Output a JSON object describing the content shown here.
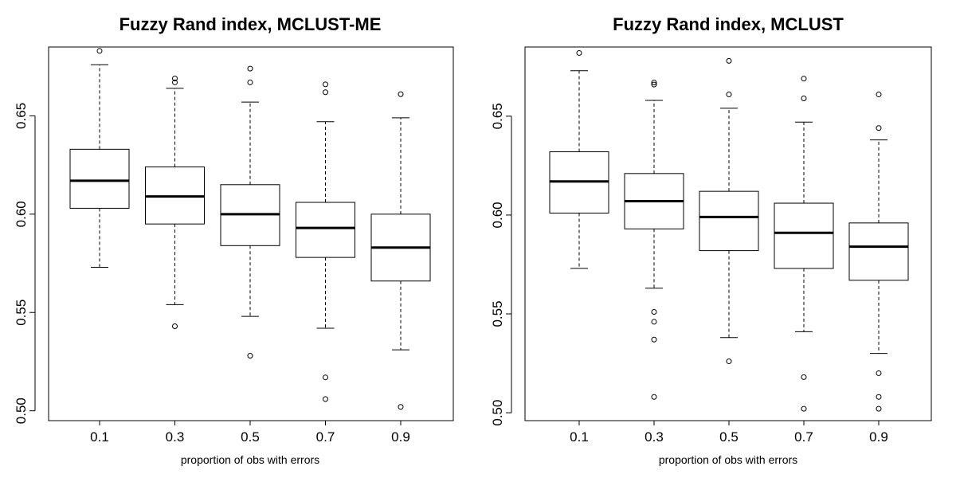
{
  "chart_data": [
    {
      "type": "box",
      "title": "Fuzzy Rand index, MCLUST-ME",
      "xlabel": "proportion of obs with errors",
      "ylabel": "",
      "categories": [
        "0.1",
        "0.3",
        "0.5",
        "0.7",
        "0.9"
      ],
      "ylim": [
        0.495,
        0.685
      ],
      "yticks": [
        0.5,
        0.55,
        0.6,
        0.65
      ],
      "ytick_labels": [
        "0.50",
        "0.55",
        "0.60",
        "0.65"
      ],
      "boxes": [
        {
          "category": "0.1",
          "whisker_low": 0.573,
          "q1": 0.603,
          "median": 0.617,
          "q3": 0.633,
          "whisker_high": 0.676,
          "outliers": [
            0.683
          ]
        },
        {
          "category": "0.3",
          "whisker_low": 0.554,
          "q1": 0.595,
          "median": 0.609,
          "q3": 0.624,
          "whisker_high": 0.664,
          "outliers": [
            0.669,
            0.667,
            0.543
          ]
        },
        {
          "category": "0.5",
          "whisker_low": 0.548,
          "q1": 0.584,
          "median": 0.6,
          "q3": 0.615,
          "whisker_high": 0.657,
          "outliers": [
            0.674,
            0.667,
            0.528
          ]
        },
        {
          "category": "0.7",
          "whisker_low": 0.542,
          "q1": 0.578,
          "median": 0.593,
          "q3": 0.606,
          "whisker_high": 0.647,
          "outliers": [
            0.666,
            0.662,
            0.517,
            0.506
          ]
        },
        {
          "category": "0.9",
          "whisker_low": 0.531,
          "q1": 0.566,
          "median": 0.583,
          "q3": 0.6,
          "whisker_high": 0.649,
          "outliers": [
            0.661,
            0.502
          ]
        }
      ],
      "grid": false
    },
    {
      "type": "box",
      "title": "Fuzzy Rand index, MCLUST",
      "xlabel": "proportion of obs with errors",
      "ylabel": "",
      "categories": [
        "0.1",
        "0.3",
        "0.5",
        "0.7",
        "0.9"
      ],
      "ylim": [
        0.496,
        0.685
      ],
      "yticks": [
        0.5,
        0.55,
        0.6,
        0.65
      ],
      "ytick_labels": [
        "0.50",
        "0.55",
        "0.60",
        "0.65"
      ],
      "boxes": [
        {
          "category": "0.1",
          "whisker_low": 0.573,
          "q1": 0.601,
          "median": 0.617,
          "q3": 0.632,
          "whisker_high": 0.673,
          "outliers": [
            0.682
          ]
        },
        {
          "category": "0.3",
          "whisker_low": 0.563,
          "q1": 0.593,
          "median": 0.607,
          "q3": 0.621,
          "whisker_high": 0.658,
          "outliers": [
            0.667,
            0.666,
            0.551,
            0.546,
            0.537,
            0.508
          ]
        },
        {
          "category": "0.5",
          "whisker_low": 0.538,
          "q1": 0.582,
          "median": 0.599,
          "q3": 0.612,
          "whisker_high": 0.654,
          "outliers": [
            0.678,
            0.661,
            0.526
          ]
        },
        {
          "category": "0.7",
          "whisker_low": 0.541,
          "q1": 0.573,
          "median": 0.591,
          "q3": 0.606,
          "whisker_high": 0.647,
          "outliers": [
            0.669,
            0.659,
            0.518,
            0.502
          ]
        },
        {
          "category": "0.9",
          "whisker_low": 0.53,
          "q1": 0.567,
          "median": 0.584,
          "q3": 0.596,
          "whisker_high": 0.638,
          "outliers": [
            0.661,
            0.644,
            0.52,
            0.508,
            0.502
          ]
        }
      ],
      "grid": false
    }
  ]
}
